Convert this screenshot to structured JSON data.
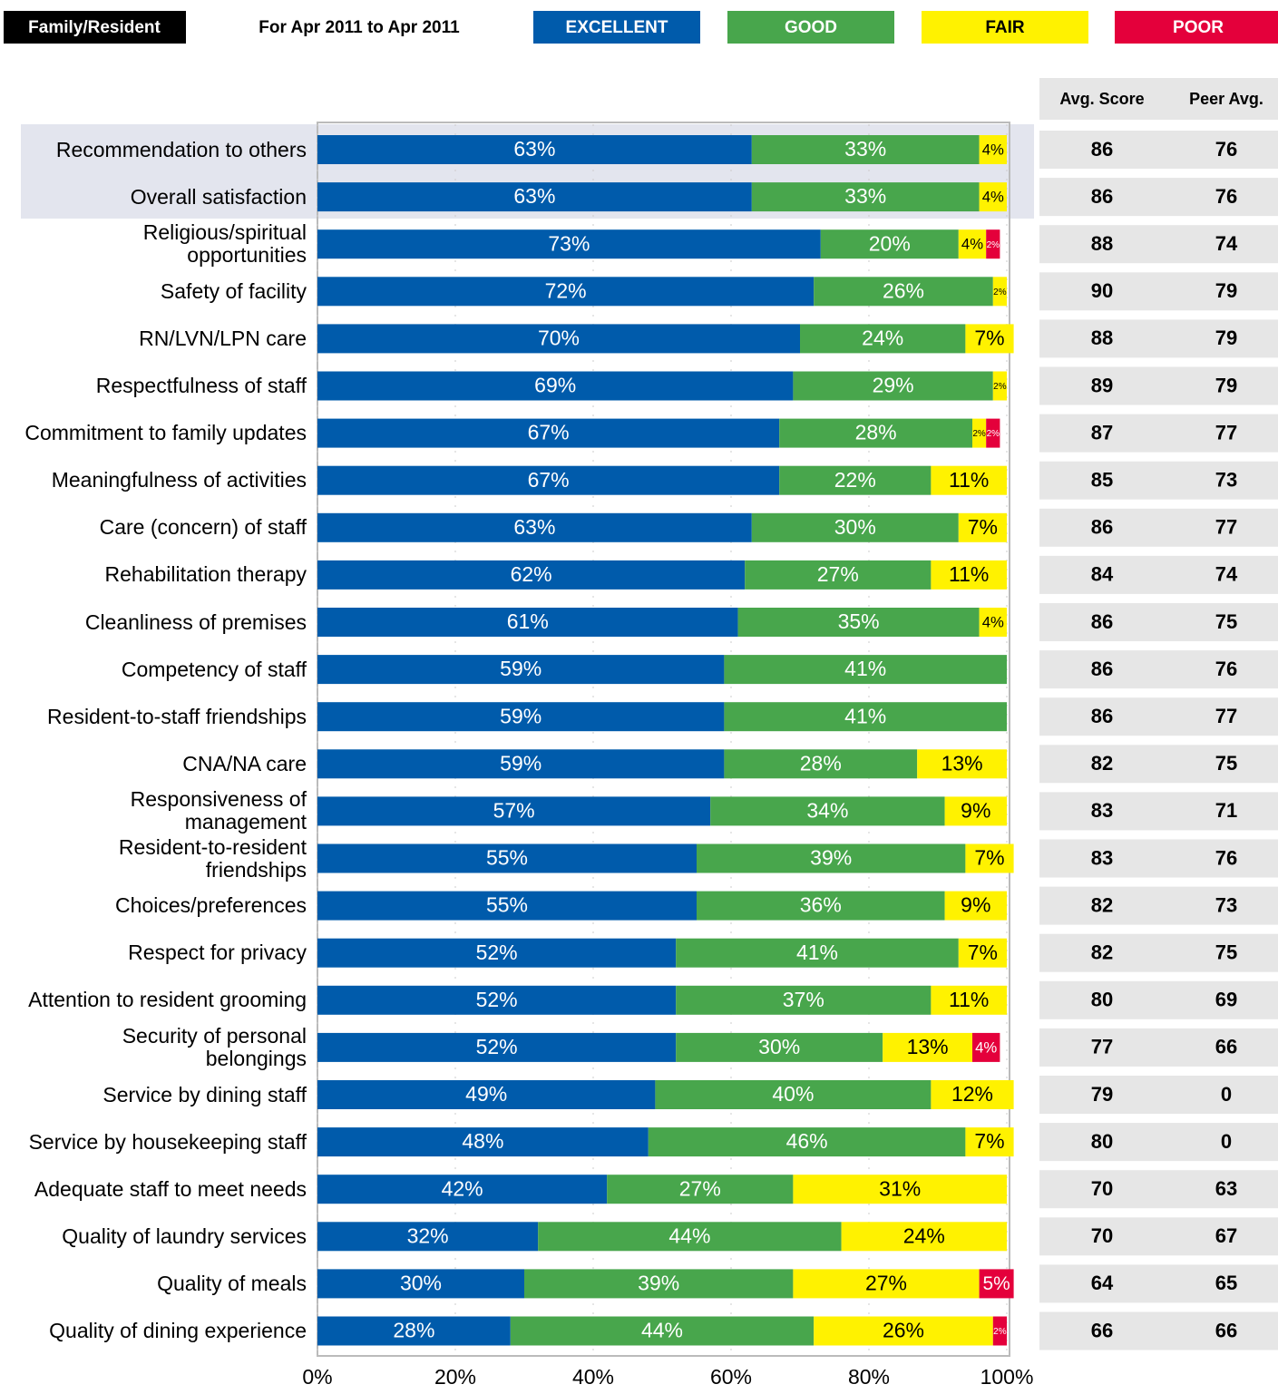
{
  "chart_data": {
    "type": "stacked_barh",
    "group": "Family/Resident",
    "period": "For Apr 2011 to Apr 2011",
    "categories": [
      "Recommendation to others",
      "Overall satisfaction",
      "Religious/spiritual opportunities",
      "Safety of facility",
      "RN/LVN/LPN care",
      "Respectfulness of staff",
      "Commitment to family updates",
      "Meaningfulness of activities",
      "Care (concern) of staff",
      "Rehabilitation therapy",
      "Cleanliness of premises",
      "Competency of staff",
      "Resident-to-staff friendships",
      "CNA/NA care",
      "Responsiveness of management",
      "Resident-to-resident friendships",
      "Choices/preferences",
      "Respect for privacy",
      "Attention to resident grooming",
      "Security of personal belongings",
      "Service by dining staff",
      "Service by housekeeping staff",
      "Adequate staff to meet needs",
      "Quality of laundry services",
      "Quality of meals",
      "Quality of dining experience"
    ],
    "series": [
      {
        "name": "EXCELLENT",
        "color": "#005bab",
        "text_color": "#ffffff",
        "values": [
          63,
          63,
          73,
          72,
          70,
          69,
          67,
          67,
          63,
          62,
          61,
          59,
          59,
          59,
          57,
          55,
          55,
          52,
          52,
          52,
          49,
          48,
          42,
          32,
          30,
          28
        ],
        "value_labels": [
          "63%",
          "63%",
          "73%",
          "72%",
          "70%",
          "69%",
          "67%",
          "67%",
          "63%",
          "62%",
          "61%",
          "59%",
          "59%",
          "59%",
          "57%",
          "55%",
          "55%",
          "52%",
          "52%",
          "52%",
          "49%",
          "48%",
          "42%",
          "32%",
          "30%",
          "28%"
        ]
      },
      {
        "name": "GOOD",
        "color": "#48a64c",
        "text_color": "#ffffff",
        "values": [
          33,
          33,
          20,
          26,
          24,
          29,
          28,
          22,
          30,
          27,
          35,
          41,
          41,
          28,
          34,
          39,
          36,
          41,
          37,
          30,
          40,
          46,
          27,
          44,
          39,
          44
        ],
        "value_labels": [
          "33%",
          "33%",
          "20%",
          "26%",
          "24%",
          "29%",
          "28%",
          "22%",
          "30%",
          "27%",
          "35%",
          "41%",
          "41%",
          "28%",
          "34%",
          "39%",
          "36%",
          "41%",
          "37%",
          "30%",
          "40%",
          "46%",
          "27%",
          "44%",
          "39%",
          "44%"
        ]
      },
      {
        "name": "FAIR",
        "color": "#fff200",
        "text_color": "#000000",
        "values": [
          4,
          4,
          4,
          2,
          7,
          2,
          2,
          11,
          7,
          11,
          4,
          0,
          0,
          13,
          9,
          7,
          9,
          7,
          11,
          13,
          12,
          7,
          31,
          24,
          27,
          26
        ],
        "value_labels": [
          "4%",
          "4%",
          "4%",
          "2%",
          "7%",
          "2%",
          "2%",
          "11%",
          "7%",
          "11%",
          "4%",
          null,
          null,
          "13%",
          "9%",
          "7%",
          "9%",
          "7%",
          "11%",
          "13%",
          "12%",
          "7%",
          "31%",
          "24%",
          "27%",
          "26%"
        ]
      },
      {
        "name": "POOR",
        "color": "#e4003b",
        "text_color": "#ffffff",
        "values": [
          0,
          0,
          2,
          0,
          0,
          0,
          2,
          0,
          0,
          0,
          0,
          0,
          0,
          0,
          0,
          0,
          0,
          0,
          0,
          4,
          0,
          0,
          0,
          0,
          5,
          2
        ],
        "value_labels": [
          null,
          null,
          "2%",
          null,
          null,
          null,
          "2%",
          null,
          null,
          null,
          null,
          null,
          null,
          null,
          null,
          null,
          null,
          null,
          null,
          "4%",
          null,
          null,
          null,
          null,
          "5%",
          "2%"
        ]
      }
    ],
    "xlim": [
      0,
      100
    ],
    "xticks": [
      {
        "value": 0,
        "label": "0%"
      },
      {
        "value": 20,
        "label": "20%"
      },
      {
        "value": 40,
        "label": "40%"
      },
      {
        "value": 60,
        "label": "60%"
      },
      {
        "value": 80,
        "label": "80%"
      },
      {
        "value": 100,
        "label": "100%"
      }
    ],
    "grid": true,
    "table": {
      "columns": [
        "Avg. Score",
        "Peer Avg."
      ],
      "rows": [
        [
          86,
          76
        ],
        [
          86,
          76
        ],
        [
          88,
          74
        ],
        [
          90,
          79
        ],
        [
          88,
          79
        ],
        [
          89,
          79
        ],
        [
          87,
          77
        ],
        [
          85,
          73
        ],
        [
          86,
          77
        ],
        [
          84,
          74
        ],
        [
          86,
          75
        ],
        [
          86,
          76
        ],
        [
          86,
          77
        ],
        [
          82,
          75
        ],
        [
          83,
          71
        ],
        [
          83,
          76
        ],
        [
          82,
          73
        ],
        [
          82,
          75
        ],
        [
          80,
          69
        ],
        [
          77,
          66
        ],
        [
          79,
          0
        ],
        [
          80,
          0
        ],
        [
          70,
          63
        ],
        [
          70,
          67
        ],
        [
          64,
          65
        ],
        [
          66,
          66
        ]
      ]
    }
  }
}
